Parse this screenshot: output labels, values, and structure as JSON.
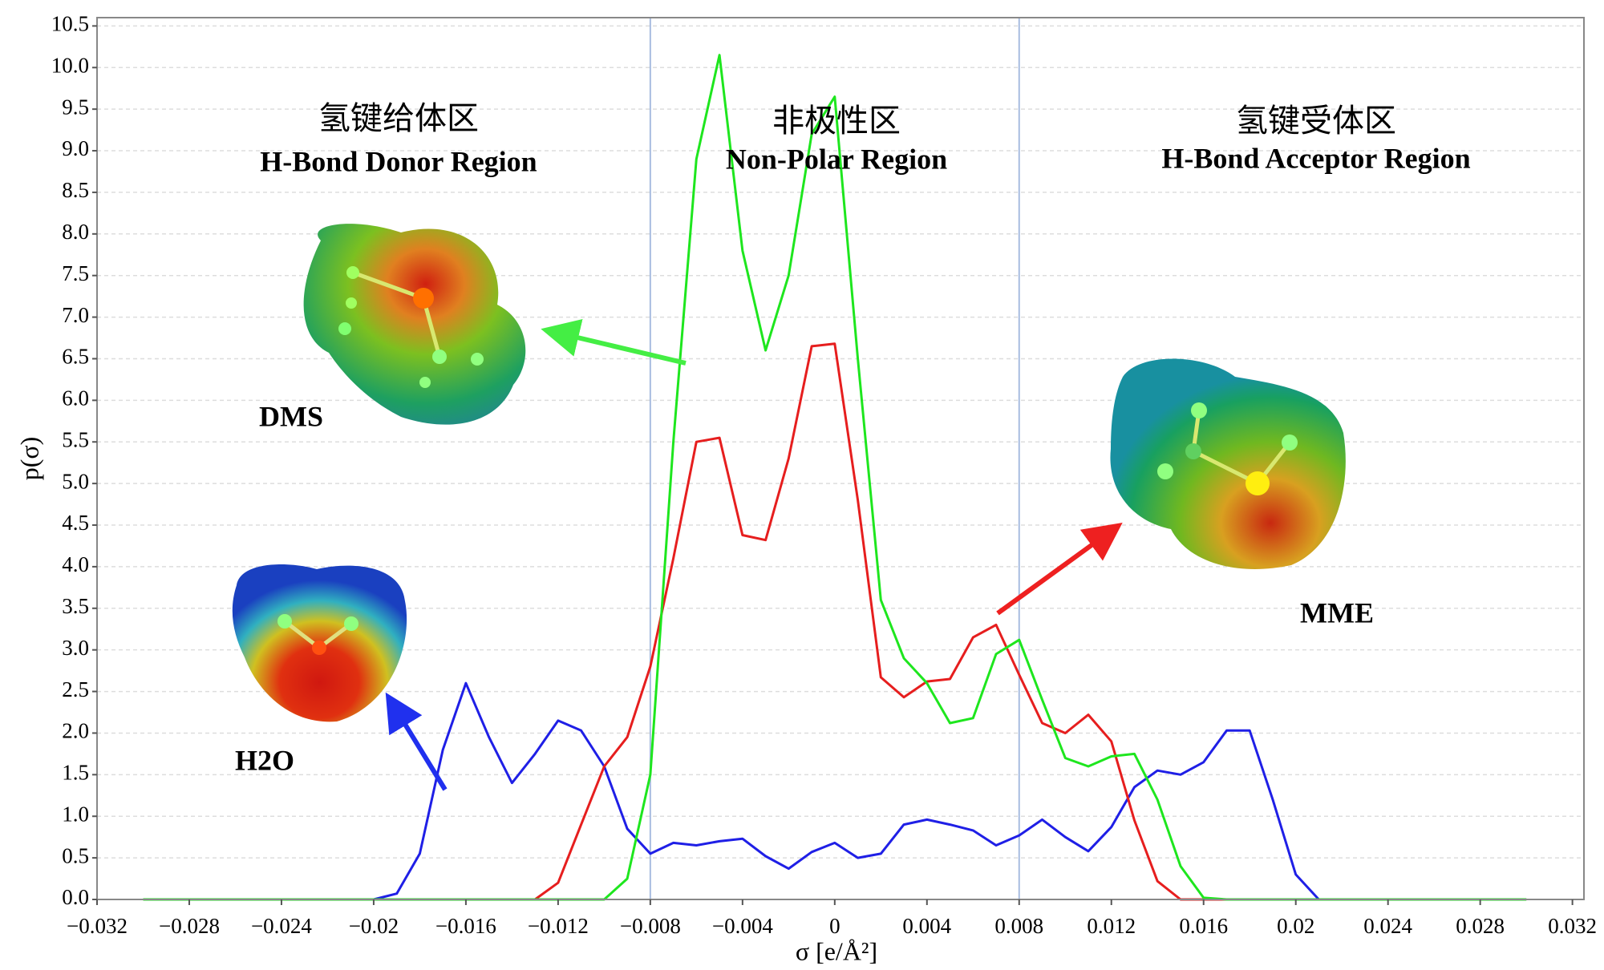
{
  "chart_data": {
    "type": "line",
    "x_label": "σ [e/Å²]",
    "y_label": "p(σ)",
    "x": [
      -0.03,
      -0.029,
      -0.028,
      -0.027,
      -0.026,
      -0.025,
      -0.024,
      -0.023,
      -0.022,
      -0.021,
      -0.02,
      -0.019,
      -0.018,
      -0.017,
      -0.016,
      -0.015,
      -0.014,
      -0.013,
      -0.012,
      -0.011,
      -0.01,
      -0.009,
      -0.008,
      -0.007,
      -0.006,
      -0.005,
      -0.004,
      -0.003,
      -0.002,
      -0.001,
      0,
      0.001,
      0.002,
      0.003,
      0.004,
      0.005,
      0.006,
      0.007,
      0.008,
      0.009,
      0.01,
      0.011,
      0.012,
      0.013,
      0.014,
      0.015,
      0.016,
      0.017,
      0.018,
      0.019,
      0.02,
      0.021,
      0.022,
      0.023,
      0.024,
      0.025,
      0.026,
      0.027,
      0.028,
      0.029,
      0.03
    ],
    "series": [
      {
        "name": "H2O",
        "color": "#1f1fe6",
        "values": [
          0,
          0,
          0,
          0,
          0,
          0,
          0,
          0,
          0,
          0,
          0,
          0.07,
          0.55,
          1.8,
          2.6,
          1.95,
          1.4,
          1.75,
          2.15,
          2.03,
          1.6,
          0.85,
          0.55,
          0.68,
          0.65,
          0.7,
          0.73,
          0.52,
          0.37,
          0.57,
          0.68,
          0.5,
          0.55,
          0.9,
          0.96,
          0.9,
          0.83,
          0.65,
          0.77,
          0.96,
          0.75,
          0.58,
          0.87,
          1.35,
          1.55,
          1.5,
          1.65,
          2.03,
          2.03,
          1.2,
          0.3,
          0,
          0,
          0,
          0,
          0,
          0,
          0,
          0,
          0,
          0
        ]
      },
      {
        "name": "MME",
        "color": "#e61e1e",
        "values": [
          0,
          0,
          0,
          0,
          0,
          0,
          0,
          0,
          0,
          0,
          0,
          0,
          0,
          0,
          0,
          0,
          0,
          0,
          0.2,
          0.9,
          1.6,
          1.95,
          2.8,
          4.1,
          5.5,
          5.55,
          4.38,
          4.32,
          5.3,
          6.65,
          6.68,
          4.8,
          2.67,
          2.43,
          2.62,
          2.65,
          3.15,
          3.3,
          2.7,
          2.12,
          2.0,
          2.22,
          1.9,
          0.95,
          0.22,
          0,
          0,
          0,
          0,
          0,
          0,
          0,
          0,
          0,
          0,
          0,
          0,
          0,
          0,
          0,
          0
        ]
      },
      {
        "name": "DMS",
        "color": "#1ee61e",
        "values": [
          0,
          0,
          0,
          0,
          0,
          0,
          0,
          0,
          0,
          0,
          0,
          0,
          0,
          0,
          0,
          0,
          0,
          0,
          0,
          0,
          0,
          0.25,
          1.5,
          5.5,
          8.9,
          10.15,
          7.8,
          6.6,
          7.5,
          9.2,
          9.65,
          6.5,
          3.6,
          2.9,
          2.6,
          2.12,
          2.18,
          2.95,
          3.12,
          2.4,
          1.7,
          1.6,
          1.72,
          1.75,
          1.2,
          0.4,
          0.02,
          0,
          0,
          0,
          0,
          0,
          0,
          0,
          0,
          0,
          0,
          0,
          0,
          0,
          0
        ]
      }
    ],
    "xlim": [
      -0.032,
      0.0325
    ],
    "xticks": [
      {
        "value": -0.032,
        "label": "−0.032"
      },
      {
        "value": -0.028,
        "label": "−0.028"
      },
      {
        "value": -0.024,
        "label": "−0.024"
      },
      {
        "value": -0.02,
        "label": "−0.02"
      },
      {
        "value": -0.016,
        "label": "−0.016"
      },
      {
        "value": -0.012,
        "label": "−0.012"
      },
      {
        "value": -0.008,
        "label": "−0.008"
      },
      {
        "value": -0.004,
        "label": "−0.004"
      },
      0,
      0.004,
      0.008,
      0.012,
      0.016,
      0.02,
      0.024,
      0.028,
      0.032
    ],
    "ylim": [
      0,
      10.6
    ],
    "yticks": [
      {
        "value": 0,
        "label": "0.0"
      },
      0.5,
      {
        "value": 1,
        "label": "1.0"
      },
      1.5,
      {
        "value": 2,
        "label": "2.0"
      },
      2.5,
      {
        "value": 3,
        "label": "3.0"
      },
      3.5,
      {
        "value": 4,
        "label": "4.0"
      },
      4.5,
      {
        "value": 5,
        "label": "5.0"
      },
      5.5,
      {
        "value": 6,
        "label": "6.0"
      },
      6.5,
      {
        "value": 7,
        "label": "7.0"
      },
      7.5,
      {
        "value": 8,
        "label": "8.0"
      },
      8.5,
      {
        "value": 9,
        "label": "9.0"
      },
      9.5,
      {
        "value": 10,
        "label": "10.0"
      },
      10.5
    ],
    "grid": "y",
    "region_boundaries": [
      -0.008,
      0.008
    ],
    "regions": [
      {
        "cn": "氢键给体区",
        "en": "H-Bond Donor Region"
      },
      {
        "cn": "非极性区",
        "en": "Non-Polar Region"
      },
      {
        "cn": "氢键受体区",
        "en": "H-Bond Acceptor Region"
      }
    ]
  }
}
